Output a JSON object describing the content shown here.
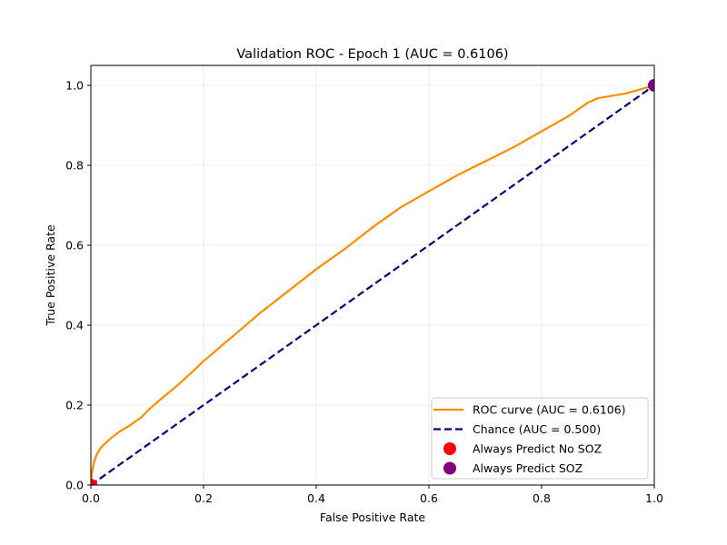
{
  "chart_data": {
    "type": "line",
    "title": "Validation ROC - Epoch 1 (AUC = 0.6106)",
    "xlabel": "False Positive Rate",
    "ylabel": "True Positive Rate",
    "xlim": [
      0,
      1
    ],
    "ylim": [
      0,
      1.05
    ],
    "xticks": [
      0,
      0.2,
      0.4,
      0.6,
      0.8,
      1
    ],
    "xtick_labels": [
      "0.0",
      "0.2",
      "0.4",
      "0.6",
      "0.8",
      "1.0"
    ],
    "yticks": [
      0,
      0.2,
      0.4,
      0.6,
      0.8,
      1
    ],
    "ytick_labels": [
      "0.0",
      "0.2",
      "0.4",
      "0.6",
      "0.8",
      "1.0"
    ],
    "grid": true,
    "legend_position": "lower-right",
    "series": [
      {
        "name": "ROC curve (AUC = 0.6106)",
        "kind": "line",
        "style": "solid",
        "color": "#ff8c00",
        "x": [
          0,
          0.001,
          0.003,
          0.006,
          0.01,
          0.015,
          0.02,
          0.03,
          0.04,
          0.05,
          0.07,
          0.09,
          0.1,
          0.12,
          0.15,
          0.18,
          0.2,
          0.25,
          0.3,
          0.35,
          0.4,
          0.45,
          0.5,
          0.55,
          0.6,
          0.65,
          0.7,
          0.75,
          0.8,
          0.85,
          0.87,
          0.88,
          0.9,
          0.95,
          1
        ],
        "y": [
          0,
          0.02,
          0.04,
          0.06,
          0.075,
          0.088,
          0.097,
          0.11,
          0.122,
          0.133,
          0.15,
          0.17,
          0.185,
          0.21,
          0.245,
          0.283,
          0.31,
          0.37,
          0.43,
          0.485,
          0.54,
          0.59,
          0.645,
          0.695,
          0.735,
          0.775,
          0.81,
          0.845,
          0.885,
          0.925,
          0.945,
          0.955,
          0.968,
          0.98,
          1.0
        ]
      },
      {
        "name": "Chance (AUC = 0.500)",
        "kind": "line",
        "style": "dashed",
        "color": "#000080",
        "x": [
          0,
          1
        ],
        "y": [
          0,
          1
        ]
      },
      {
        "name": "Always Predict No SOZ",
        "kind": "point",
        "color": "#ff0000",
        "x": [
          0
        ],
        "y": [
          0
        ]
      },
      {
        "name": "Always Predict SOZ",
        "kind": "point",
        "color": "#800080",
        "x": [
          1
        ],
        "y": [
          1
        ]
      }
    ]
  }
}
